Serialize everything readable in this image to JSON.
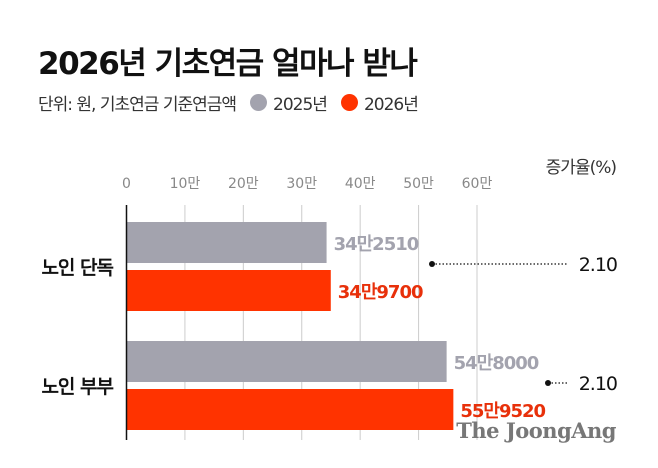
{
  "title": "2026년 기초연금 얼마나 받나",
  "subtitle": "단위: 원, 기초연금 기준연금액",
  "logo": "The JoongAng",
  "chart_data": {
    "type": "bar",
    "orientation": "horizontal",
    "categories": [
      "노인 단독",
      "노인 부부"
    ],
    "series": [
      {
        "name": "2025년",
        "color": "#a3a3ae",
        "values": [
          342510,
          548000
        ],
        "labels": [
          "34만2510",
          "54만8000"
        ]
      },
      {
        "name": "2026년",
        "color": "#ff3300",
        "values": [
          349700,
          559520
        ],
        "labels": [
          "34만9700",
          "55만9520"
        ]
      }
    ],
    "xlim": [
      0,
      600000
    ],
    "xticks": [
      0,
      100000,
      200000,
      300000,
      400000,
      500000,
      600000
    ],
    "xtick_labels": [
      "0",
      "10만",
      "20만",
      "30만",
      "40만",
      "50만",
      "60만"
    ],
    "grid": true,
    "legend": "top-left",
    "rate_header": "증가율(%)",
    "rates": [
      "2.10",
      "2.10"
    ]
  }
}
